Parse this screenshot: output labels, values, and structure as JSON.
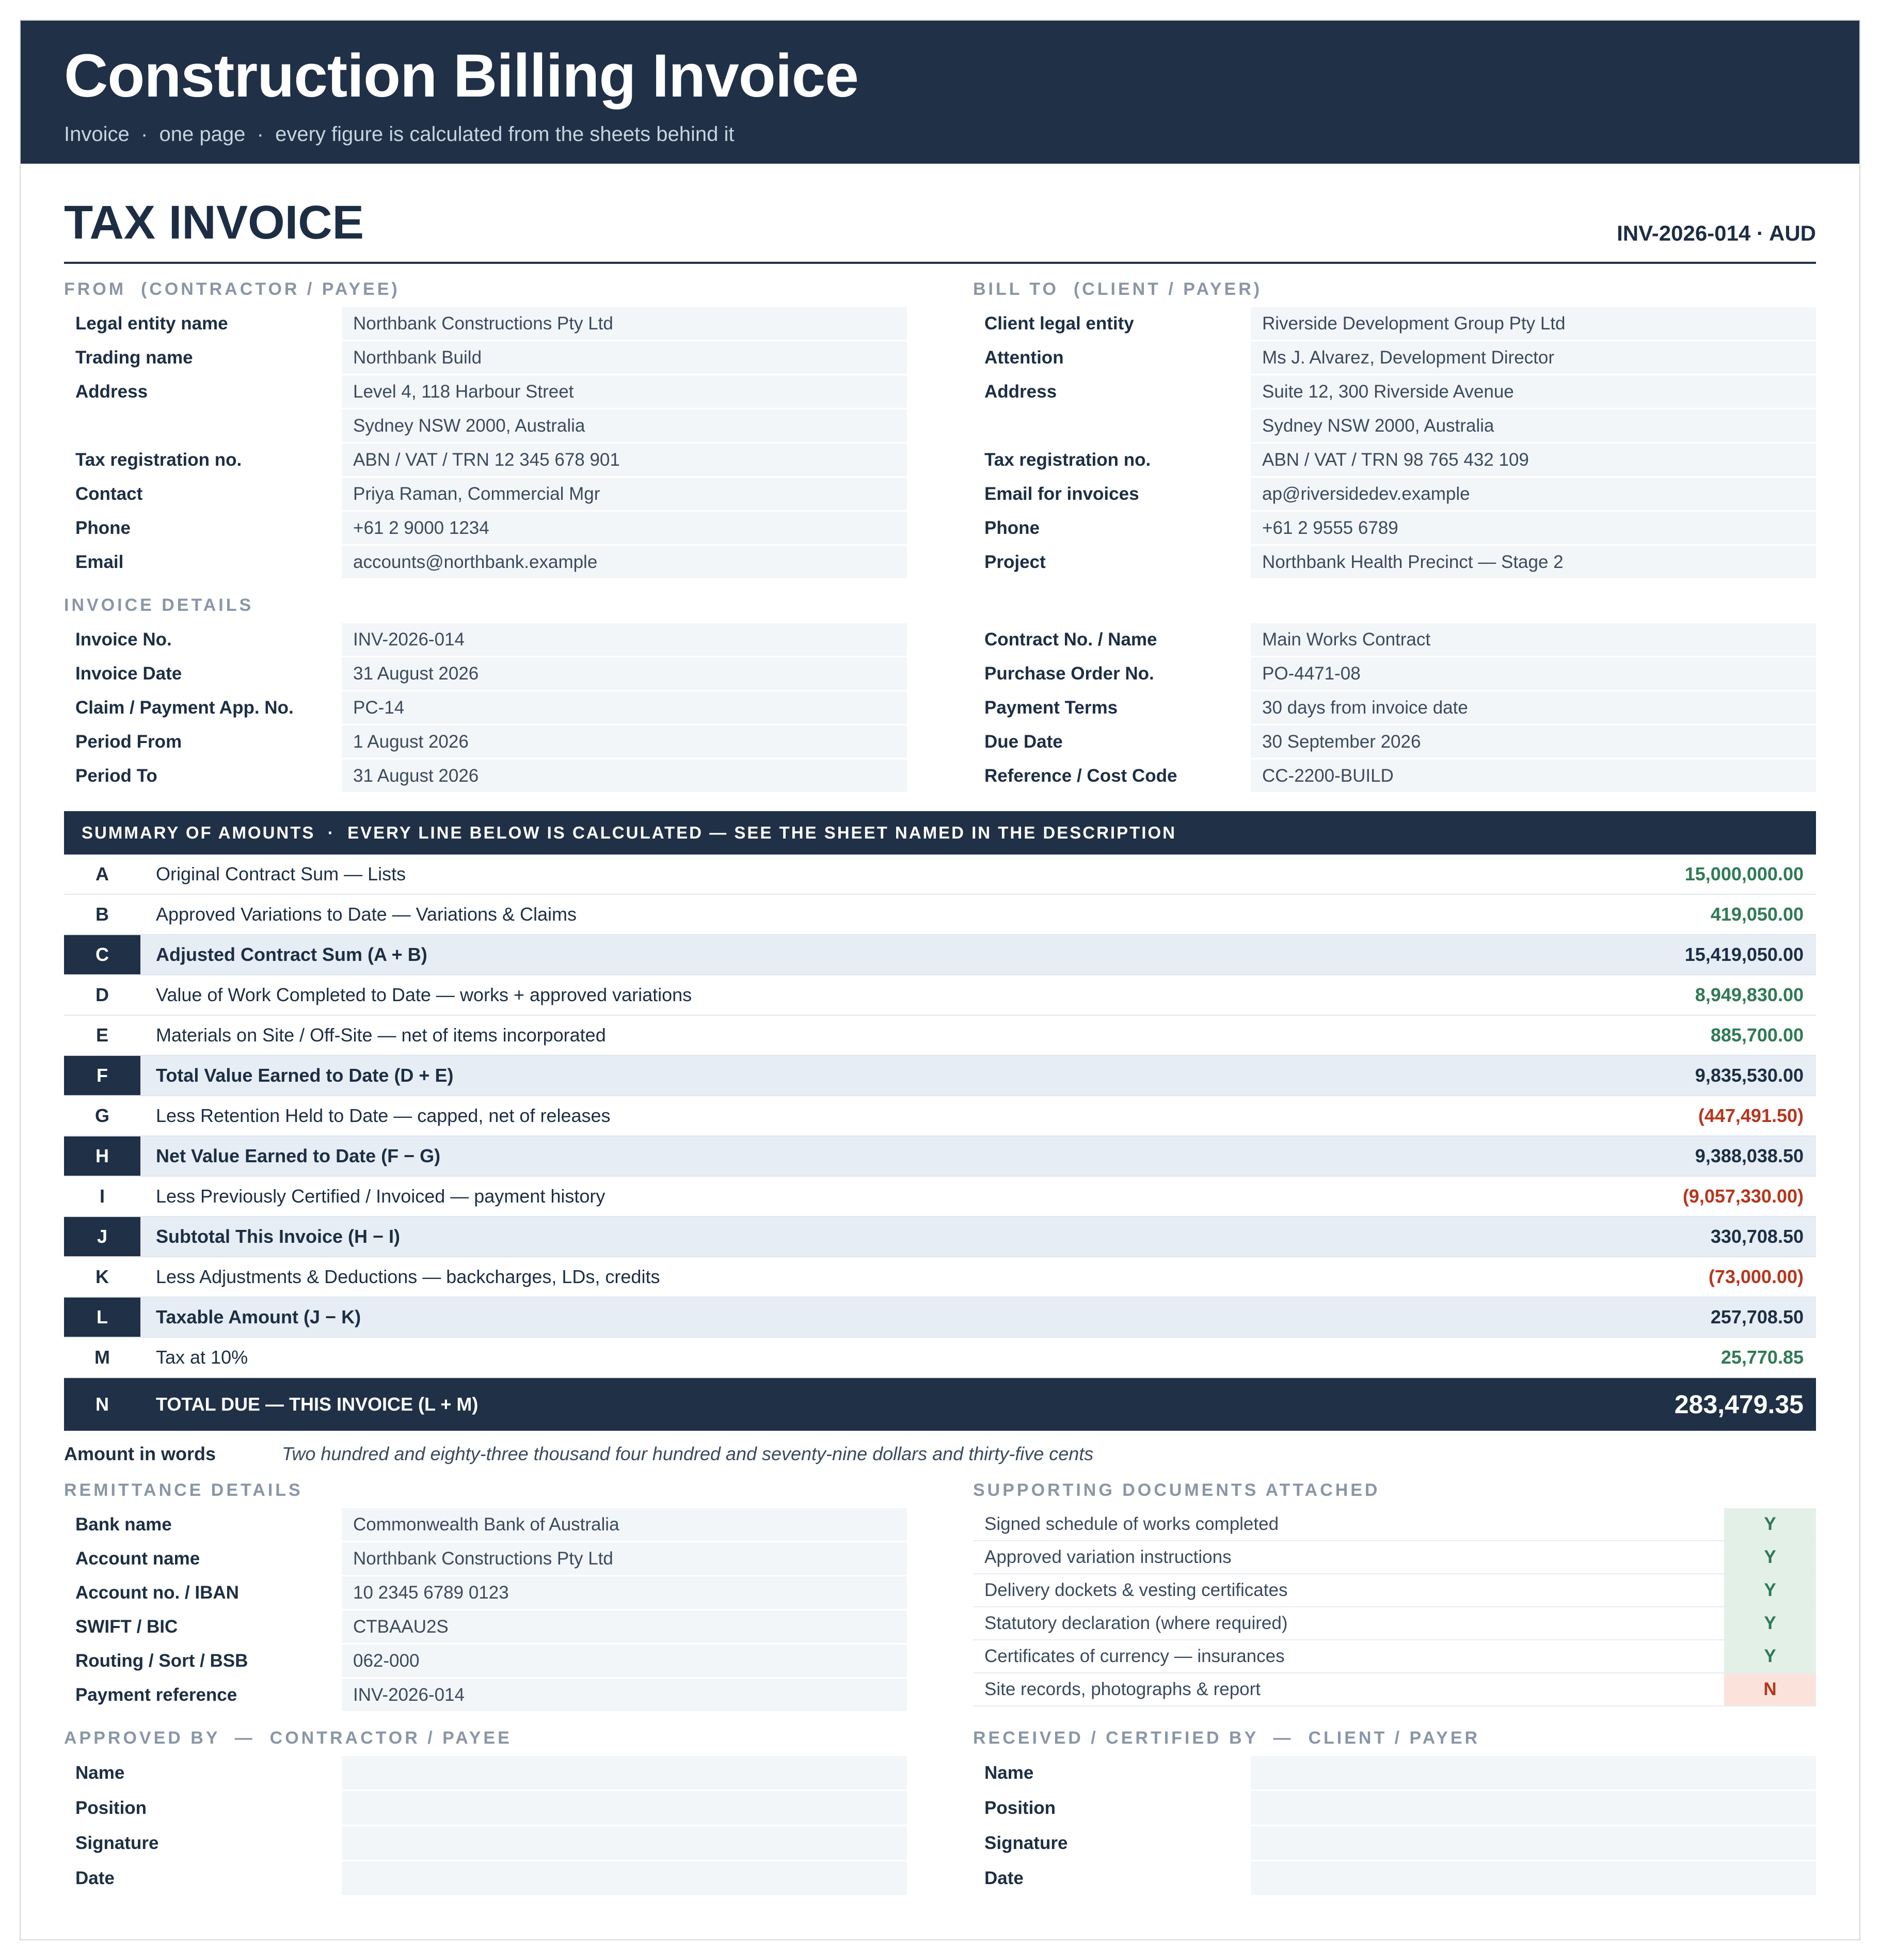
{
  "banner": {
    "title": "Construction Billing Invoice",
    "subtitle": "Invoice  ·  one page  ·  every figure is calculated from the sheets behind it"
  },
  "doc": {
    "heading": "TAX INVOICE",
    "reference": "INV-2026-014  ·  AUD"
  },
  "from": {
    "label": "FROM  (CONTRACTOR / PAYEE)",
    "rows": [
      {
        "k": "Legal entity name",
        "v": "Northbank Constructions Pty Ltd"
      },
      {
        "k": "Trading name",
        "v": "Northbank Build"
      },
      {
        "k": "Address",
        "v": "Level 4, 118 Harbour Street"
      },
      {
        "k": "",
        "v": "Sydney NSW 2000, Australia"
      },
      {
        "k": "Tax registration no.",
        "v": "ABN / VAT / TRN 12 345 678 901"
      },
      {
        "k": "Contact",
        "v": "Priya Raman, Commercial Mgr"
      },
      {
        "k": "Phone",
        "v": "+61 2 9000 1234"
      },
      {
        "k": "Email",
        "v": "accounts@northbank.example"
      }
    ]
  },
  "bill_to": {
    "label": "BILL TO  (CLIENT / PAYER)",
    "rows": [
      {
        "k": "Client legal entity",
        "v": "Riverside Development Group Pty Ltd"
      },
      {
        "k": "Attention",
        "v": "Ms J. Alvarez, Development Director"
      },
      {
        "k": "Address",
        "v": "Suite 12, 300 Riverside Avenue"
      },
      {
        "k": "",
        "v": "Sydney NSW 2000, Australia"
      },
      {
        "k": "Tax registration no.",
        "v": "ABN / VAT / TRN 98 765 432 109"
      },
      {
        "k": "Email for invoices",
        "v": "ap@riversidedev.example"
      },
      {
        "k": "Phone",
        "v": "+61 2 9555 6789"
      },
      {
        "k": "Project",
        "v": "Northbank Health Precinct — Stage 2"
      }
    ]
  },
  "invoice_details": {
    "label": "INVOICE DETAILS",
    "left": [
      {
        "k": "Invoice No.",
        "v": "INV-2026-014"
      },
      {
        "k": "Invoice Date",
        "v": "31 August 2026"
      },
      {
        "k": "Claim / Payment App. No.",
        "v": "PC-14"
      },
      {
        "k": "Period From",
        "v": "1 August 2026"
      },
      {
        "k": "Period To",
        "v": "31 August 2026"
      }
    ],
    "right": [
      {
        "k": "Contract No. / Name",
        "v": "Main Works Contract"
      },
      {
        "k": "Purchase Order No.",
        "v": "PO-4471-08"
      },
      {
        "k": "Payment Terms",
        "v": "30 days from invoice date"
      },
      {
        "k": "Due Date",
        "v": "30 September 2026"
      },
      {
        "k": "Reference / Cost Code",
        "v": "CC-2200-BUILD"
      }
    ]
  },
  "summary": {
    "header": "SUMMARY OF AMOUNTS  ·  EVERY LINE BELOW IS CALCULATED — SEE THE SHEET NAMED IN THE DESCRIPTION",
    "rows": [
      {
        "letter": "A",
        "desc": "Original Contract Sum — Lists",
        "amount": "15,000,000.00",
        "kind": "norm",
        "tone": "pos"
      },
      {
        "letter": "B",
        "desc": "Approved Variations to Date — Variations & Claims",
        "amount": "419,050.00",
        "kind": "norm",
        "tone": "pos"
      },
      {
        "letter": "C",
        "desc": "Adjusted Contract Sum (A + B)",
        "amount": "15,419,050.00",
        "kind": "sub",
        "tone": "ink"
      },
      {
        "letter": "D",
        "desc": "Value of Work Completed to Date — works + approved variations",
        "amount": "8,949,830.00",
        "kind": "norm",
        "tone": "pos"
      },
      {
        "letter": "E",
        "desc": "Materials on Site / Off-Site — net of items incorporated",
        "amount": "885,700.00",
        "kind": "norm",
        "tone": "pos"
      },
      {
        "letter": "F",
        "desc": "Total Value Earned to Date (D + E)",
        "amount": "9,835,530.00",
        "kind": "sub",
        "tone": "ink"
      },
      {
        "letter": "G",
        "desc": "Less Retention Held to Date — capped, net of releases",
        "amount": "(447,491.50)",
        "kind": "norm",
        "tone": "neg"
      },
      {
        "letter": "H",
        "desc": "Net Value Earned to Date (F − G)",
        "amount": "9,388,038.50",
        "kind": "sub",
        "tone": "ink"
      },
      {
        "letter": "I",
        "desc": "Less Previously Certified / Invoiced — payment history",
        "amount": "(9,057,330.00)",
        "kind": "norm",
        "tone": "neg"
      },
      {
        "letter": "J",
        "desc": "Subtotal This Invoice (H − I)",
        "amount": "330,708.50",
        "kind": "sub",
        "tone": "ink"
      },
      {
        "letter": "K",
        "desc": "Less Adjustments & Deductions — backcharges, LDs, credits",
        "amount": "(73,000.00)",
        "kind": "norm",
        "tone": "neg"
      },
      {
        "letter": "L",
        "desc": "Taxable Amount (J − K)",
        "amount": "257,708.50",
        "kind": "sub",
        "tone": "ink"
      },
      {
        "letter": "M",
        "desc": "Tax at 10%",
        "amount": "25,770.85",
        "kind": "norm",
        "tone": "pos"
      },
      {
        "letter": "N",
        "desc": "TOTAL DUE — THIS INVOICE (L + M)",
        "amount": "283,479.35",
        "kind": "total",
        "tone": ""
      }
    ]
  },
  "amount_in_words": {
    "label": "Amount in words",
    "value": "Two hundred and eighty-three thousand four hundred and seventy-nine dollars and thirty-five cents"
  },
  "remittance": {
    "label": "REMITTANCE DETAILS",
    "rows": [
      {
        "k": "Bank name",
        "v": "Commonwealth Bank of Australia"
      },
      {
        "k": "Account name",
        "v": "Northbank Constructions Pty Ltd"
      },
      {
        "k": "Account no. / IBAN",
        "v": "10 2345 6789 0123"
      },
      {
        "k": "SWIFT / BIC",
        "v": "CTBAAU2S"
      },
      {
        "k": "Routing / Sort / BSB",
        "v": "062-000"
      },
      {
        "k": "Payment reference",
        "v": "INV-2026-014"
      }
    ]
  },
  "supporting_docs": {
    "label": "SUPPORTING DOCUMENTS ATTACHED",
    "rows": [
      {
        "doc": "Signed schedule of works completed",
        "flag": "Y"
      },
      {
        "doc": "Approved variation instructions",
        "flag": "Y"
      },
      {
        "doc": "Delivery dockets & vesting certificates",
        "flag": "Y"
      },
      {
        "doc": "Statutory declaration (where required)",
        "flag": "Y"
      },
      {
        "doc": "Certificates of currency — insurances",
        "flag": "Y"
      },
      {
        "doc": "Site records, photographs & report",
        "flag": "N"
      }
    ]
  },
  "approved_by": {
    "label": "APPROVED BY  —  CONTRACTOR / PAYEE",
    "rows": [
      {
        "k": "Name",
        "v": ""
      },
      {
        "k": "Position",
        "v": ""
      },
      {
        "k": "Signature",
        "v": ""
      },
      {
        "k": "Date",
        "v": ""
      }
    ]
  },
  "received_by": {
    "label": "RECEIVED / CERTIFIED BY  —  CLIENT / PAYER",
    "rows": [
      {
        "k": "Name",
        "v": ""
      },
      {
        "k": "Position",
        "v": ""
      },
      {
        "k": "Signature",
        "v": ""
      },
      {
        "k": "Date",
        "v": ""
      }
    ]
  },
  "colors": {
    "navy": "#1f3047",
    "positive": "#2f7a55",
    "negative": "#b5361d",
    "cell_bg": "#f3f6f9",
    "subtotal_bg": "#e6edf5"
  }
}
